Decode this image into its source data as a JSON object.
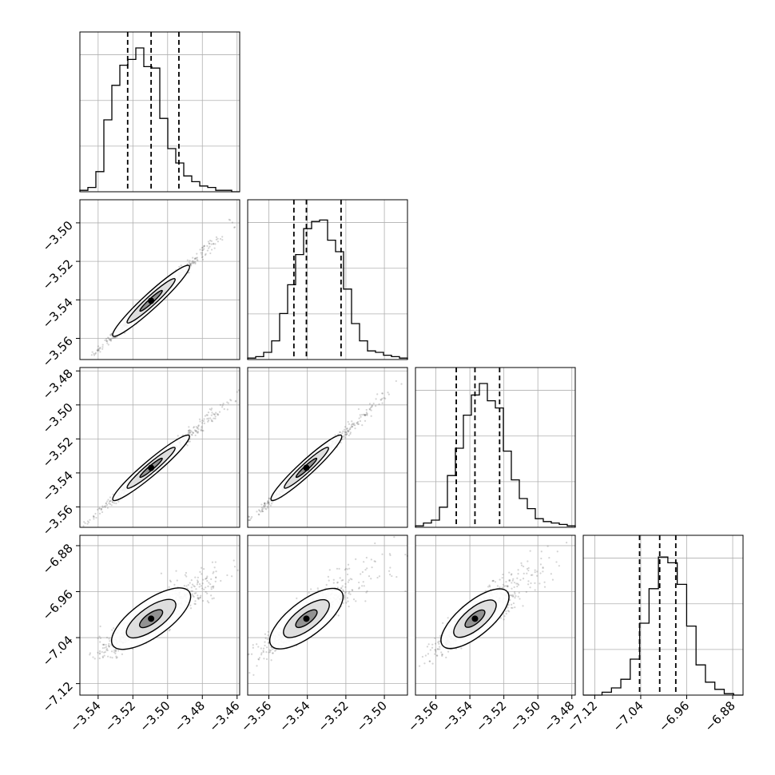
{
  "chart_data": {
    "type": "corner",
    "grid": true,
    "quantile_style": "dashed",
    "params": [
      {
        "quantiles": [
          -3.523,
          -3.5095,
          -3.4935
        ]
      },
      {
        "quantiles": [
          -3.547,
          -3.5405,
          -3.5225
        ]
      },
      {
        "quantiles": [
          -3.548,
          -3.537,
          -3.5225
        ]
      },
      {
        "quantiles": [
          -7.042,
          -7.007,
          -6.979
        ]
      }
    ],
    "axis_ranges": [
      [
        -3.5505,
        -3.4585
      ],
      [
        -3.571,
        -3.488
      ],
      [
        -3.572,
        -3.478
      ],
      [
        -7.14,
        -6.862
      ]
    ],
    "histograms": [
      [
        0.01,
        0.03,
        0.14,
        0.5,
        0.74,
        0.88,
        0.92,
        1.0,
        0.87,
        0.86,
        0.51,
        0.3,
        0.2,
        0.11,
        0.07,
        0.04,
        0.03,
        0.01,
        0.01,
        0.0
      ],
      [
        0.01,
        0.02,
        0.05,
        0.13,
        0.32,
        0.52,
        0.73,
        0.91,
        0.96,
        0.97,
        0.83,
        0.75,
        0.49,
        0.25,
        0.13,
        0.06,
        0.05,
        0.03,
        0.02,
        0.01
      ],
      [
        0.01,
        0.03,
        0.05,
        0.14,
        0.36,
        0.55,
        0.78,
        0.92,
        1.0,
        0.88,
        0.83,
        0.53,
        0.33,
        0.2,
        0.13,
        0.06,
        0.04,
        0.03,
        0.02,
        0.01
      ],
      [
        0.0,
        0.0,
        0.02,
        0.05,
        0.11,
        0.25,
        0.5,
        0.74,
        0.96,
        0.92,
        0.77,
        0.48,
        0.21,
        0.09,
        0.04,
        0.01,
        0.0
      ]
    ],
    "y_ticks": {
      "1": [
        "-3.50",
        "-3.52",
        "-3.54",
        "-3.56"
      ],
      "2": [
        "-3.48",
        "-3.50",
        "-3.52",
        "-3.54",
        "-3.56"
      ],
      "3": [
        "-6.88",
        "-6.96",
        "-7.04",
        "-7.12"
      ]
    },
    "x_ticks": {
      "0": [
        "-3.54",
        "-3.52",
        "-3.50",
        "-3.48",
        "-3.46"
      ],
      "1": [
        "-3.56",
        "-3.54",
        "-3.52",
        "-3.50"
      ],
      "2": [
        "-3.56",
        "-3.54",
        "-3.52",
        "-3.50",
        "-3.48"
      ],
      "3": [
        "-7.12",
        "-7.04",
        "-6.96",
        "-6.88"
      ]
    }
  }
}
